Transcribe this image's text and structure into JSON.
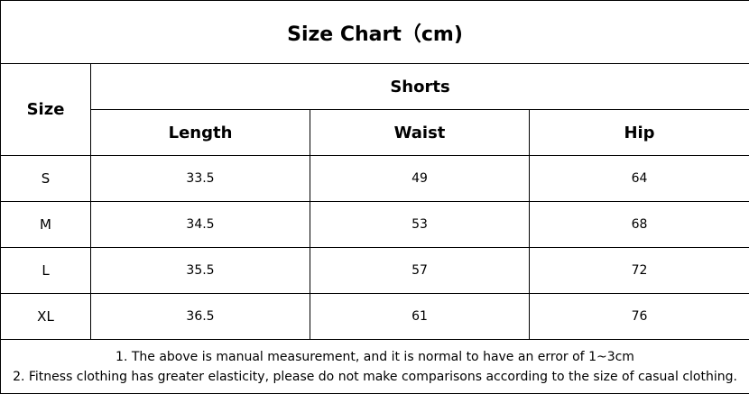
{
  "title": "Size Chart（cm)",
  "size_label": "Size",
  "group_label": "Shorts",
  "columns": [
    "Length",
    "Waist",
    "Hip"
  ],
  "rows": [
    {
      "size": "S",
      "values": [
        "33.5",
        "49",
        "64"
      ]
    },
    {
      "size": "M",
      "values": [
        "34.5",
        "53",
        "68"
      ]
    },
    {
      "size": "L",
      "values": [
        "35.5",
        "57",
        "72"
      ]
    },
    {
      "size": "XL",
      "values": [
        "36.5",
        "61",
        "76"
      ]
    }
  ],
  "notes": [
    "1. The above is manual measurement, and it is normal to have an error of 1~3cm",
    "2. Fitness clothing has greater elasticity, please do not make comparisons according to the size of casual clothing."
  ]
}
